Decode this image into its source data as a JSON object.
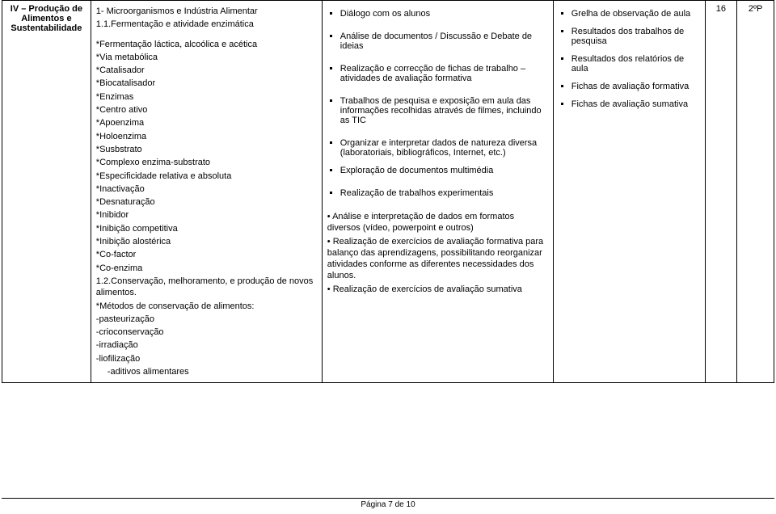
{
  "col1": {
    "label": "IV – Produção de Alimentos e Sustentabilidade"
  },
  "col2": {
    "h1": "1- Microorganismos e Indústria Alimentar",
    "h2": "1.1.Fermentação e atividade enzimática",
    "items1": [
      "*Fermentação láctica, alcoólica e acética",
      "*Via metabólica",
      "*Catalisador",
      "*Biocatalisador",
      "*Enzimas",
      "*Centro ativo",
      "*Apoenzima",
      "*Holoenzima",
      "*Susbstrato",
      "*Complexo enzima-substrato",
      "*Especificidade relativa e absoluta",
      "*Inactivação",
      "*Desnaturação",
      "*Inibidor",
      "*Inibição competitiva",
      "*Inibição alostérica",
      "*Co-factor",
      "*Co-enzima"
    ],
    "h3": "1.2.Conservação, melhoramento, e produção de novos alimentos.",
    "h4": "*Métodos de conservação de alimentos:",
    "items2": [
      "-pasteurização",
      "-crioconservação",
      "-irradiação",
      "-liofilização"
    ],
    "last": "-aditivos alimentares"
  },
  "col3": {
    "b1": "Diálogo com os alunos",
    "b2": "Análise de documentos / Discussão e Debate de ideias",
    "b3": "Realização e correcção de fichas de trabalho – atividades de avaliação formativa",
    "b4": "Trabalhos de pesquisa e exposição em aula das informações recolhidas através de filmes, incluindo as TIC",
    "b5": "Organizar e interpretar dados de natureza diversa (laboratoriais, bibliográficos, Internet, etc.)",
    "b6": "Exploração de documentos multimédia",
    "b7": "Realização de trabalhos experimentais",
    "p1": "• Análise e interpretação de dados em formatos diversos (vídeo, powerpoint e outros)",
    "p2": "• Realização de exercícios de avaliação formativa para balanço das aprendizagens, possibilitando reorganizar atividades conforme as diferentes necessidades dos alunos.",
    "p3": "• Realização de exercícios de avaliação sumativa"
  },
  "col4": {
    "b1": "Grelha de observação de aula",
    "b2": "Resultados dos trabalhos de pesquisa",
    "b3": "Resultados dos relatórios de aula",
    "b4": "Fichas de avaliação formativa",
    "b5": "Fichas de avaliação sumativa"
  },
  "col5": {
    "val": "16"
  },
  "col6": {
    "val": "2ºP"
  },
  "footer": "Página 7 de 10"
}
